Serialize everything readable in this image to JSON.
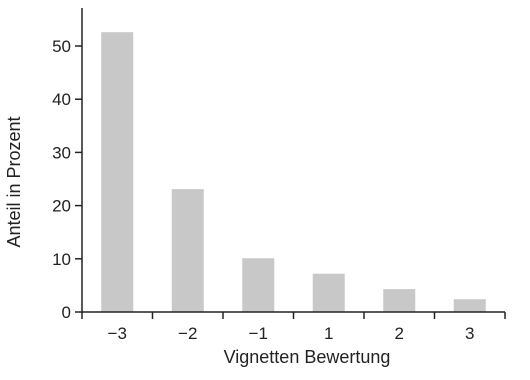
{
  "chart_data": {
    "type": "bar",
    "categories": [
      "−3",
      "−2",
      "−1",
      "1",
      "2",
      "3"
    ],
    "values": [
      52.6,
      23.1,
      10.1,
      7.2,
      4.3,
      2.4
    ],
    "xlabel": "Vignetten Bewertung",
    "ylabel": "Anteil in Prozent",
    "ylim": [
      0,
      60
    ],
    "yticks": [
      0,
      10,
      20,
      30,
      40,
      50
    ],
    "bar_color": "#c8c8c8",
    "axis_color": "#222222",
    "grid": false
  }
}
